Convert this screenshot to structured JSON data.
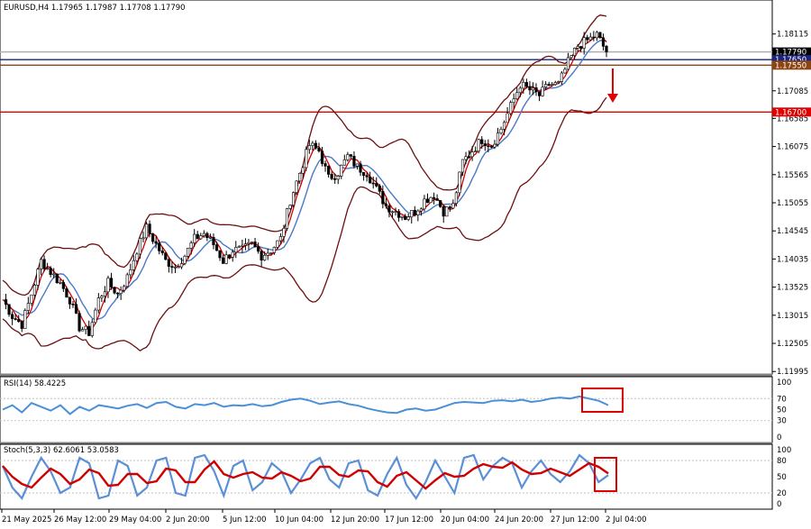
{
  "chart_data": {
    "type": "candlestick",
    "symbol": "EURUSD,H4",
    "ohlc_header": "1.17965 1.17987 1.17708 1.17790",
    "y_ticks": [
      "1.18115",
      "1.17085",
      "1.16585",
      "1.16075",
      "1.15565",
      "1.15055",
      "1.14545",
      "1.14035",
      "1.13525",
      "1.13015",
      "1.12505",
      "1.11995"
    ],
    "ylim": [
      1.1195,
      1.1865
    ],
    "price_labels": [
      {
        "text": "1.17790",
        "value": 1.1779,
        "bg": "#000000",
        "fg": "#ffffff"
      },
      {
        "text": "1.17650",
        "value": 1.1765,
        "bg": "#1a237e",
        "fg": "#ffffff"
      },
      {
        "text": "1.17550",
        "value": 1.1755,
        "bg": "#8b4513",
        "fg": "#ffffff"
      },
      {
        "text": "1.16700",
        "value": 1.167,
        "bg": "#e00000",
        "fg": "#ffffff"
      }
    ],
    "levels": [
      {
        "value": 1.1779,
        "color": "#b0b0b0"
      },
      {
        "value": 1.1765,
        "color": "#1a237e"
      },
      {
        "value": 1.1755,
        "color": "#8b4513"
      },
      {
        "value": 1.167,
        "color": "#e00000"
      }
    ],
    "x_labels": [
      "21 May 2025",
      "26 May 12:00",
      "29 May 04:00",
      "2 Jun 20:00",
      "5 Jun 12:00",
      "10 Jun 04:00",
      "12 Jun 20:00",
      "17 Jun 12:00",
      "20 Jun 04:00",
      "24 Jun 20:00",
      "27 Jun 12:00",
      "2 Jul 04:00"
    ],
    "price_path": [
      [
        0,
        1.133
      ],
      [
        3,
        1.13
      ],
      [
        6,
        1.1285
      ],
      [
        9,
        1.134
      ],
      [
        12,
        1.14
      ],
      [
        15,
        1.138
      ],
      [
        18,
        1.136
      ],
      [
        21,
        1.133
      ],
      [
        24,
        1.128
      ],
      [
        27,
        1.127
      ],
      [
        30,
        1.133
      ],
      [
        33,
        1.136
      ],
      [
        36,
        1.134
      ],
      [
        39,
        1.137
      ],
      [
        42,
        1.142
      ],
      [
        45,
        1.146
      ],
      [
        48,
        1.143
      ],
      [
        51,
        1.14
      ],
      [
        54,
        1.139
      ],
      [
        57,
        1.141
      ],
      [
        60,
        1.144
      ],
      [
        63,
        1.145
      ],
      [
        66,
        1.143
      ],
      [
        69,
        1.14
      ],
      [
        72,
        1.142
      ],
      [
        75,
        1.142
      ],
      [
        78,
        1.143
      ],
      [
        81,
        1.141
      ],
      [
        84,
        1.142
      ],
      [
        87,
        1.144
      ],
      [
        90,
        1.151
      ],
      [
        93,
        1.156
      ],
      [
        96,
        1.161
      ],
      [
        99,
        1.16
      ],
      [
        102,
        1.155
      ],
      [
        105,
        1.156
      ],
      [
        108,
        1.159
      ],
      [
        111,
        1.157
      ],
      [
        114,
        1.156
      ],
      [
        117,
        1.153
      ],
      [
        120,
        1.15
      ],
      [
        123,
        1.149
      ],
      [
        126,
        1.148
      ],
      [
        129,
        1.149
      ],
      [
        132,
        1.151
      ],
      [
        135,
        1.152
      ],
      [
        138,
        1.149
      ],
      [
        141,
        1.15
      ],
      [
        144,
        1.158
      ],
      [
        147,
        1.16
      ],
      [
        150,
        1.162
      ],
      [
        153,
        1.161
      ],
      [
        156,
        1.164
      ],
      [
        159,
        1.168
      ],
      [
        162,
        1.172
      ],
      [
        165,
        1.171
      ],
      [
        168,
        1.17
      ],
      [
        171,
        1.172
      ],
      [
        174,
        1.172
      ],
      [
        177,
        1.176
      ],
      [
        180,
        1.179
      ],
      [
        183,
        1.18
      ],
      [
        186,
        1.181
      ],
      [
        189,
        1.1779
      ]
    ],
    "indicators": {
      "rsi": {
        "label": "RSI(14) 58.4225",
        "ticks": [
          "100",
          "70",
          "50",
          "30",
          "0"
        ],
        "levels": [
          70,
          30
        ],
        "ylim": [
          0,
          100
        ],
        "color": "#4a90d9",
        "values": [
          50,
          58,
          45,
          62,
          55,
          48,
          58,
          42,
          55,
          48,
          58,
          55,
          52,
          57,
          60,
          53,
          62,
          64,
          55,
          52,
          60,
          58,
          62,
          55,
          58,
          57,
          60,
          56,
          58,
          64,
          68,
          70,
          66,
          60,
          63,
          65,
          60,
          57,
          52,
          48,
          45,
          44,
          50,
          52,
          48,
          50,
          56,
          62,
          64,
          63,
          62,
          66,
          67,
          65,
          68,
          64,
          66,
          70,
          72,
          70,
          74,
          70,
          66,
          58
        ]
      },
      "stoch": {
        "label": "Stoch(5,3,3) 62.6061 53.0583",
        "ticks": [
          "100",
          "80",
          "50",
          "20",
          "0"
        ],
        "levels": [
          80,
          20
        ],
        "ylim": [
          0,
          100
        ],
        "k_color": "#5b8fd6",
        "d_color": "#d00000",
        "k": [
          70,
          30,
          10,
          50,
          85,
          60,
          20,
          30,
          85,
          75,
          10,
          15,
          80,
          70,
          15,
          30,
          80,
          85,
          20,
          15,
          85,
          90,
          60,
          15,
          70,
          80,
          25,
          40,
          75,
          60,
          20,
          45,
          75,
          85,
          45,
          30,
          75,
          80,
          25,
          15,
          55,
          85,
          35,
          10,
          40,
          80,
          50,
          20,
          85,
          90,
          45,
          70,
          85,
          75,
          30,
          60,
          80,
          55,
          40,
          60,
          90,
          75,
          40,
          53
        ]
      }
    },
    "annotations": [
      "red-arrow-down-to-1.16700",
      "red-box-rsi",
      "red-box-stoch"
    ]
  }
}
